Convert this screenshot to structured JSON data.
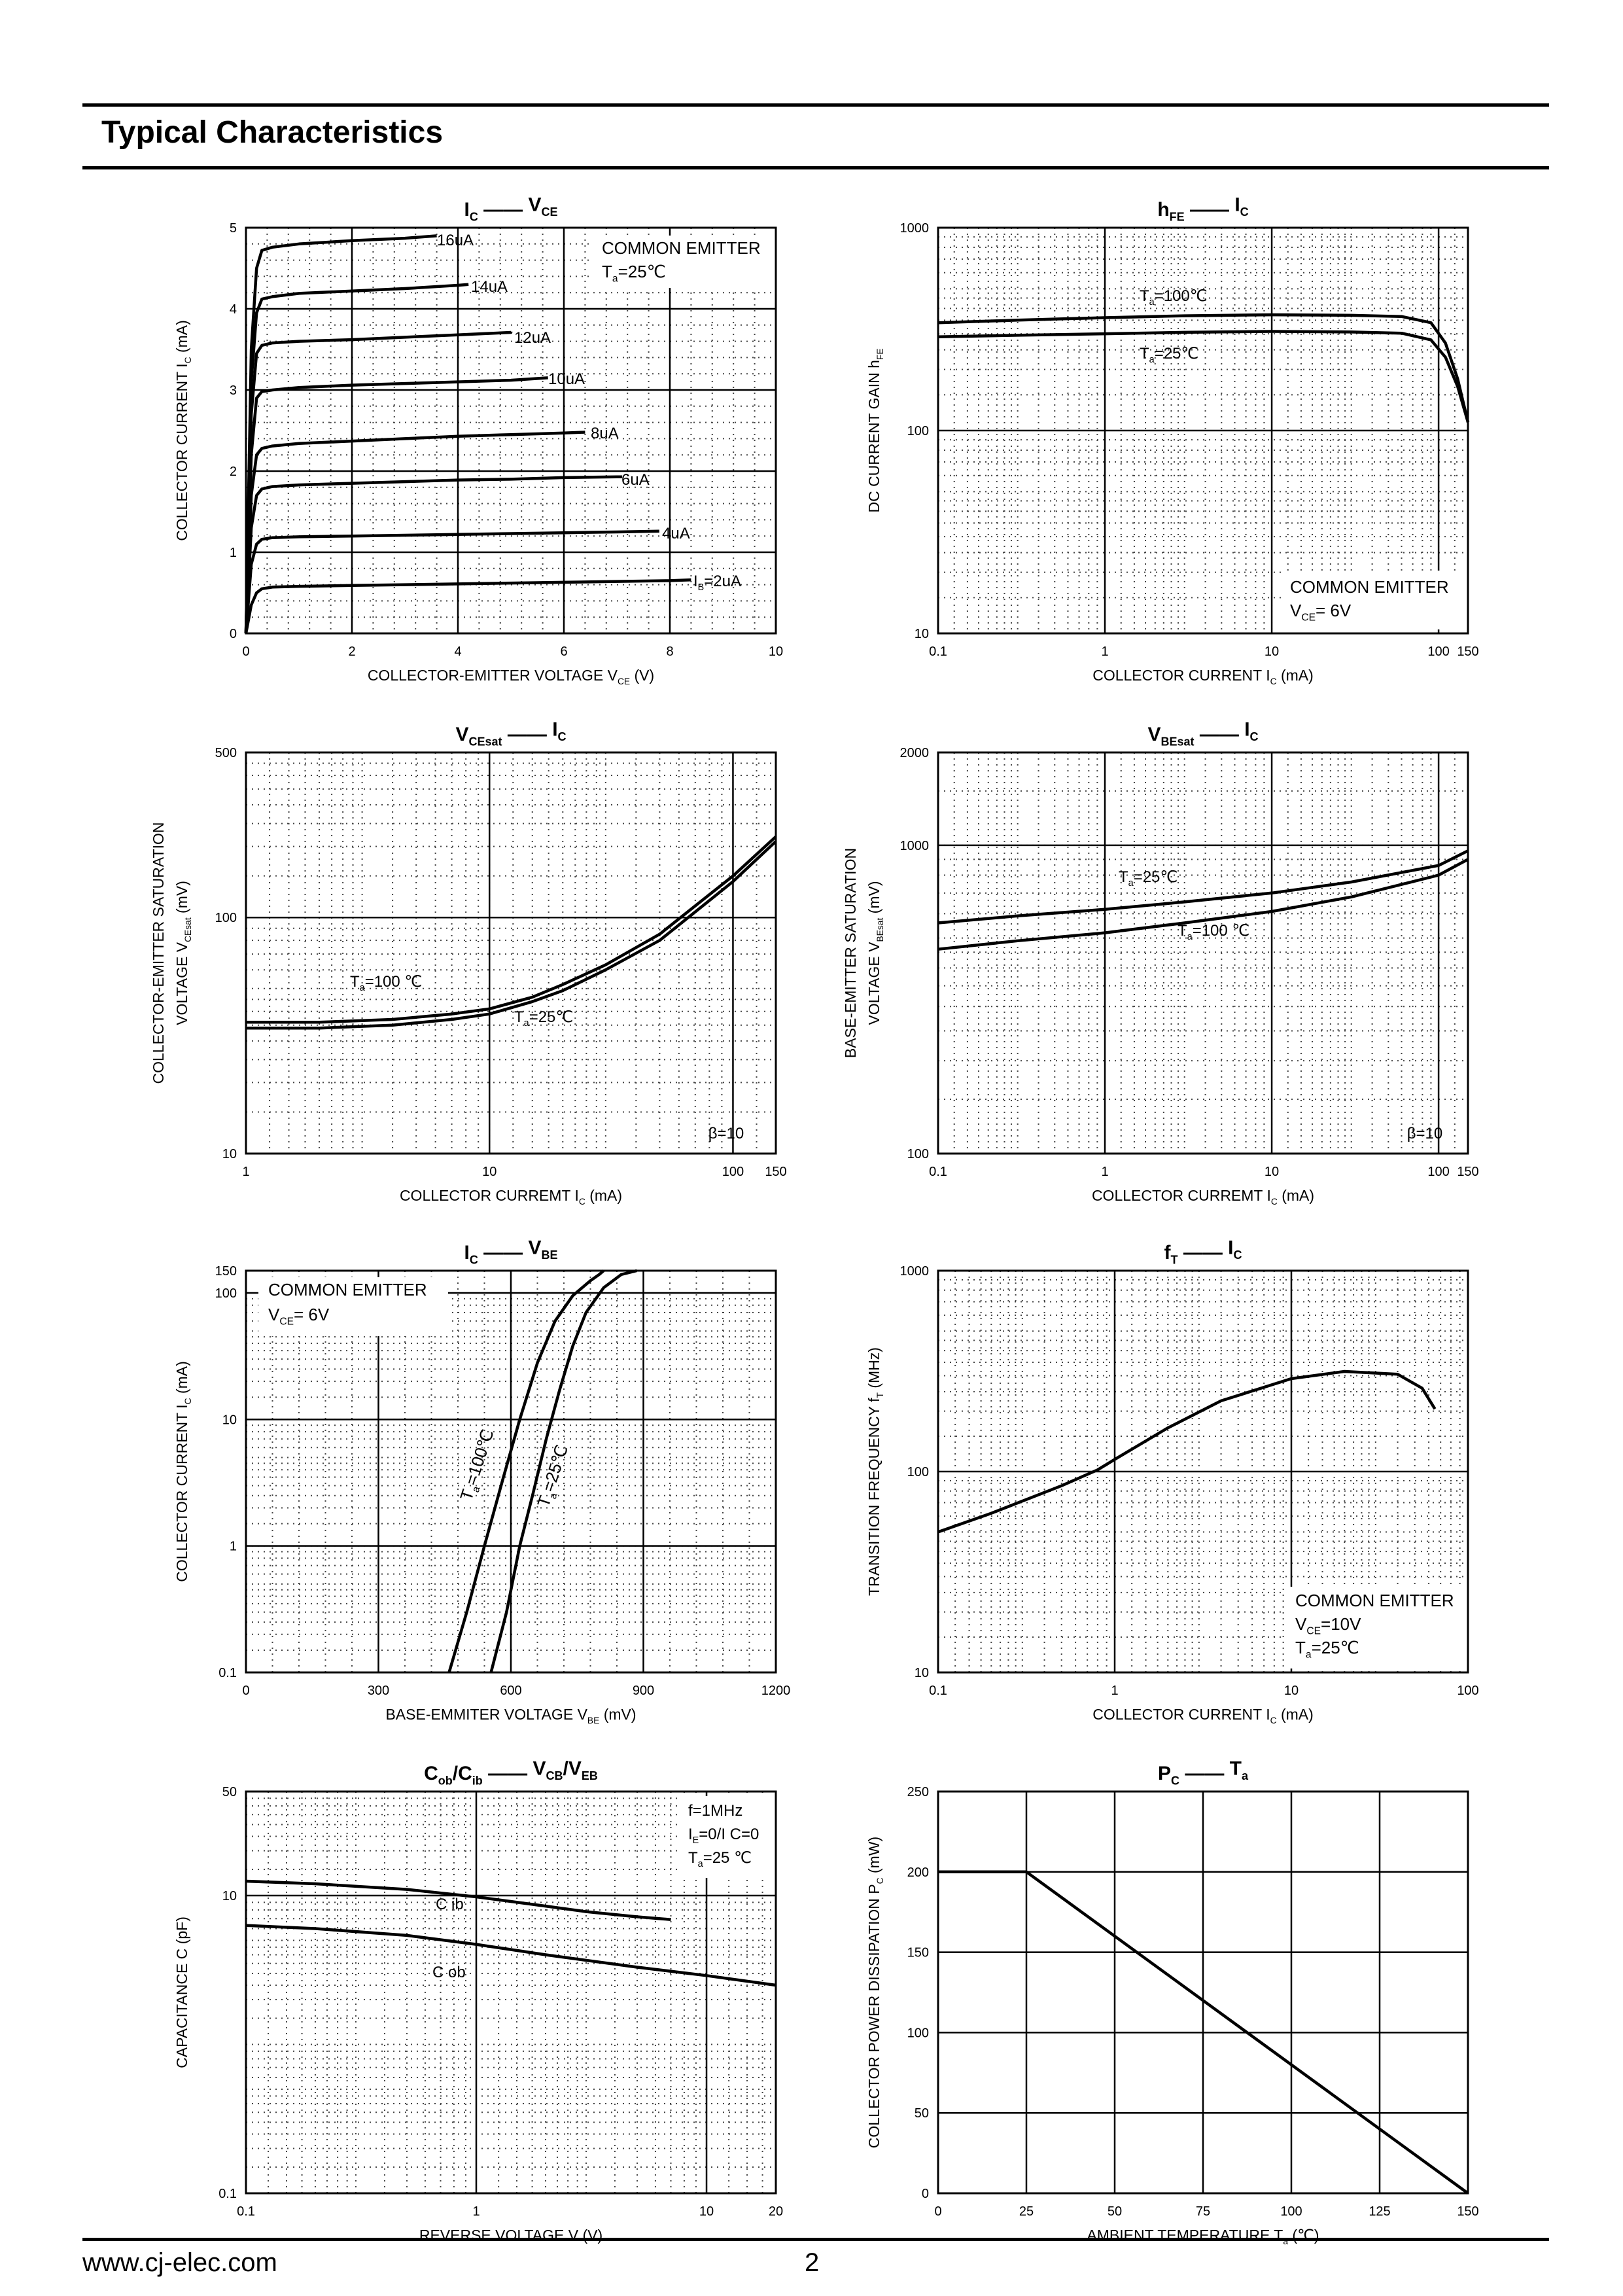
{
  "header": {
    "title": "Typical Characteristics"
  },
  "footer": {
    "website": "www.cj-elec.com",
    "page_number": "2"
  },
  "chart_data": [
    {
      "id": "ic-vce",
      "type": "line",
      "xscale": "linear",
      "yscale": "linear",
      "xlim": [
        0,
        10
      ],
      "ylim": [
        0,
        5
      ],
      "xticks": [
        0,
        2,
        4,
        6,
        8,
        10
      ],
      "xtick_labels": [
        "0",
        "2",
        "4",
        "6",
        "8",
        "10"
      ],
      "yticks": [
        0,
        1,
        2,
        3,
        4,
        5
      ],
      "ytick_labels": [
        "0",
        "1",
        "2",
        "3",
        "4",
        "5"
      ],
      "title_main": "I",
      "title_main_sub": "C",
      "title_dash": "——",
      "title_second": "V",
      "title_second_sub": "CE",
      "xlabel": "COLLECTOR-EMITTER VOLTAGE",
      "xlabel_sym": "V",
      "xlabel_sub": "CE",
      "xlabel_unit": "(V)",
      "ylabel": "COLLECTOR CURRENT",
      "ylabel_sym": "I",
      "ylabel_sub": "C",
      "ylabel_unit": "(mA)",
      "conditions": [
        "COMMON EMITTER",
        "T a=25℃"
      ],
      "series": [
        {
          "name": "16uA",
          "label": "16uA",
          "x": [
            0,
            0.1,
            0.2,
            0.3,
            0.5,
            1,
            2,
            3,
            3.6
          ],
          "y": [
            0,
            3.5,
            4.5,
            4.72,
            4.76,
            4.8,
            4.84,
            4.87,
            4.9
          ]
        },
        {
          "name": "14uA",
          "label": "14uA",
          "x": [
            0,
            0.1,
            0.2,
            0.3,
            0.5,
            1,
            2,
            3,
            4,
            4.2
          ],
          "y": [
            0,
            3.1,
            3.95,
            4.12,
            4.15,
            4.19,
            4.22,
            4.25,
            4.29,
            4.3
          ]
        },
        {
          "name": "12uA",
          "label": "12uA",
          "x": [
            0,
            0.1,
            0.2,
            0.3,
            0.5,
            1,
            2,
            3,
            4,
            5,
            5.0
          ],
          "y": [
            0,
            2.7,
            3.45,
            3.55,
            3.58,
            3.6,
            3.62,
            3.65,
            3.68,
            3.71,
            3.72
          ]
        },
        {
          "name": "10uA",
          "label": "10uA",
          "x": [
            0,
            0.1,
            0.2,
            0.3,
            0.5,
            1,
            2,
            3,
            4,
            5,
            5.7
          ],
          "y": [
            0,
            2.2,
            2.9,
            2.98,
            3.0,
            3.03,
            3.06,
            3.08,
            3.1,
            3.12,
            3.15
          ]
        },
        {
          "name": "8uA",
          "label": "8uA",
          "x": [
            0,
            0.1,
            0.2,
            0.3,
            0.5,
            1,
            2,
            3,
            4,
            5,
            6,
            6.4
          ],
          "y": [
            0,
            1.7,
            2.2,
            2.28,
            2.31,
            2.34,
            2.37,
            2.4,
            2.43,
            2.45,
            2.47,
            2.48
          ]
        },
        {
          "name": "6uA",
          "label": "6uA",
          "x": [
            0,
            0.1,
            0.2,
            0.3,
            0.5,
            1,
            2,
            3,
            4,
            5,
            6,
            7,
            7.1
          ],
          "y": [
            0,
            1.3,
            1.7,
            1.78,
            1.81,
            1.83,
            1.85,
            1.87,
            1.89,
            1.9,
            1.92,
            1.93,
            1.93
          ]
        },
        {
          "name": "4uA",
          "label": "4uA",
          "x": [
            0,
            0.1,
            0.2,
            0.3,
            0.5,
            1,
            2,
            3,
            4,
            5,
            6,
            7,
            7.8
          ],
          "y": [
            0,
            0.85,
            1.1,
            1.16,
            1.18,
            1.19,
            1.2,
            1.21,
            1.22,
            1.23,
            1.24,
            1.25,
            1.26
          ]
        },
        {
          "name": "2uA",
          "label": "I B=2uA",
          "x": [
            0,
            0.1,
            0.2,
            0.3,
            0.5,
            1,
            2,
            3,
            4,
            5,
            6,
            7,
            8,
            8.4
          ],
          "y": [
            0,
            0.35,
            0.5,
            0.55,
            0.57,
            0.58,
            0.59,
            0.6,
            0.61,
            0.62,
            0.63,
            0.64,
            0.65,
            0.66
          ]
        }
      ]
    },
    {
      "id": "hfe-ic",
      "type": "line",
      "xscale": "log",
      "yscale": "log",
      "xlim": [
        0.1,
        150
      ],
      "ylim": [
        10,
        1000
      ],
      "xticks": [
        0.1,
        1,
        10,
        100,
        150
      ],
      "xtick_labels": [
        "0.1",
        "1",
        "10",
        "100",
        "150"
      ],
      "yticks": [
        10,
        100,
        1000
      ],
      "ytick_labels": [
        "10",
        "100",
        "1000"
      ],
      "title_main": "h",
      "title_main_sub": "FE",
      "title_dash": "——",
      "title_second": "I",
      "title_second_sub": "C",
      "xlabel": "COLLECTOR CURRENT",
      "xlabel_sym": "I",
      "xlabel_sub": "C",
      "xlabel_unit": "(mA)",
      "ylabel": "DC CURRENT GAIN",
      "ylabel_sym": "h",
      "ylabel_sub": "FE",
      "ylabel_unit": "",
      "conditions": [
        "COMMON EMITTER",
        "V CE= 6V"
      ],
      "series": [
        {
          "name": "Ta=100℃",
          "label": "T a=100℃",
          "x": [
            0.1,
            0.3,
            1,
            3,
            10,
            30,
            60,
            90,
            110,
            130,
            150
          ],
          "y": [
            340,
            350,
            360,
            368,
            372,
            370,
            365,
            340,
            270,
            180,
            110
          ]
        },
        {
          "name": "Ta=25℃",
          "label": "T a=25℃",
          "x": [
            0.1,
            0.3,
            1,
            3,
            10,
            30,
            60,
            90,
            110,
            130,
            150
          ],
          "y": [
            290,
            295,
            300,
            305,
            308,
            306,
            302,
            280,
            230,
            165,
            110
          ]
        }
      ]
    },
    {
      "id": "vcesat-ic",
      "type": "line",
      "xscale": "log",
      "yscale": "log",
      "xlim": [
        1,
        150
      ],
      "ylim": [
        10,
        500
      ],
      "xticks": [
        1,
        10,
        100,
        150
      ],
      "xtick_labels": [
        "1",
        "10",
        "100",
        "150"
      ],
      "yticks": [
        10,
        100,
        500
      ],
      "ytick_labels": [
        "10",
        "100",
        "500"
      ],
      "title_main": "V",
      "title_main_sub": "CEsat",
      "title_dash": "——",
      "title_second": "I",
      "title_second_sub": "C",
      "xlabel": "COLLECTOR CURREMT",
      "xlabel_sym": "I",
      "xlabel_sub": "C",
      "xlabel_unit": "(mA)",
      "ylabel": "COLLECTOR-EMITTER SATURATION",
      "ylabel2": "VOLTAGE",
      "ylabel_sym": "V",
      "ylabel_sub": "CEsat",
      "ylabel_unit": "(mV)",
      "conditions": [],
      "annotations": [
        "β=10"
      ],
      "series": [
        {
          "name": "Ta=100℃",
          "label": "T a=100 ℃",
          "x": [
            1,
            2,
            4,
            7,
            10,
            15,
            20,
            30,
            50,
            80,
            100,
            150
          ],
          "y": [
            36,
            36,
            37,
            39,
            41,
            46,
            52,
            63,
            85,
            125,
            150,
            220
          ]
        },
        {
          "name": "Ta=25℃",
          "label": "T a=25℃",
          "x": [
            1,
            2,
            4,
            7,
            10,
            15,
            20,
            30,
            50,
            80,
            100,
            150
          ],
          "y": [
            34,
            34,
            35,
            37,
            39,
            44,
            49,
            60,
            80,
            118,
            142,
            210
          ]
        }
      ]
    },
    {
      "id": "vbesat-ic",
      "type": "line",
      "xscale": "log",
      "yscale": "log",
      "xlim": [
        0.1,
        150
      ],
      "ylim": [
        100,
        2000
      ],
      "xticks": [
        0.1,
        1,
        10,
        100,
        150
      ],
      "xtick_labels": [
        "0.1",
        "1",
        "10",
        "100",
        "150"
      ],
      "yticks": [
        100,
        1000,
        2000
      ],
      "ytick_labels": [
        "100",
        "1000",
        "2000"
      ],
      "title_main": "V",
      "title_main_sub": "BEsat",
      "title_dash": "——",
      "title_second": "I",
      "title_second_sub": "C",
      "xlabel": "COLLECTOR CURREMT",
      "xlabel_sym": "I",
      "xlabel_sub": "C",
      "xlabel_unit": "(mA)",
      "ylabel": "BASE-EMITTER SATURATION",
      "ylabel2": "VOLTAGE",
      "ylabel_sym": "V",
      "ylabel_sub": "BEsat",
      "ylabel_unit": "(mV)",
      "conditions": [],
      "annotations": [
        "β=10"
      ],
      "series": [
        {
          "name": "Ta=25℃",
          "label": "T a=25℃",
          "x": [
            0.1,
            0.3,
            1,
            3,
            10,
            30,
            100,
            150
          ],
          "y": [
            560,
            590,
            620,
            655,
            700,
            760,
            860,
            960
          ]
        },
        {
          "name": "Ta=100℃",
          "label": "T a=100 ℃",
          "x": [
            0.1,
            0.3,
            1,
            3,
            10,
            30,
            100,
            150
          ],
          "y": [
            460,
            490,
            520,
            560,
            610,
            680,
            800,
            900
          ]
        }
      ]
    },
    {
      "id": "ic-vbe",
      "type": "line",
      "xscale": "linear",
      "yscale": "log",
      "xlim": [
        0,
        1200
      ],
      "ylim": [
        0.1,
        150
      ],
      "xticks": [
        0,
        300,
        600,
        900,
        1200
      ],
      "xtick_labels": [
        "0",
        "300",
        "600",
        "900",
        "1200"
      ],
      "yticks": [
        0.1,
        1,
        10,
        100,
        150
      ],
      "ytick_labels": [
        "0.1",
        "1",
        "10",
        "100",
        "150"
      ],
      "title_main": "I",
      "title_main_sub": "C",
      "title_dash": "——",
      "title_second": "V",
      "title_second_sub": "BE",
      "xlabel": "BASE-EMMITER VOLTAGE",
      "xlabel_sym": "V",
      "xlabel_sub": "BE",
      "xlabel_unit": "(mV)",
      "ylabel": "COLLECTOR CURRENT",
      "ylabel_sym": "I",
      "ylabel_sub": "C",
      "ylabel_unit": "(mA)",
      "conditions": [
        "COMMON EMITTER",
        "V CE= 6V"
      ],
      "series": [
        {
          "name": "Ta=100℃",
          "label": "T a=100℃",
          "x": [
            460,
            500,
            540,
            580,
            620,
            660,
            700,
            740,
            780,
            800,
            810
          ],
          "y": [
            0.1,
            0.3,
            1.0,
            3.2,
            10,
            28,
            60,
            95,
            125,
            140,
            150
          ]
        },
        {
          "name": "Ta=25℃",
          "label": "T a=25℃",
          "x": [
            555,
            590,
            620,
            650,
            680,
            710,
            740,
            770,
            810,
            850,
            885
          ],
          "y": [
            0.1,
            0.3,
            1.0,
            2.6,
            7.0,
            17,
            38,
            70,
            110,
            140,
            150
          ]
        }
      ]
    },
    {
      "id": "ft-ic",
      "type": "line",
      "xscale": "log",
      "yscale": "log",
      "xlim": [
        0.1,
        100
      ],
      "ylim": [
        10,
        1000
      ],
      "xticks": [
        0.1,
        1,
        10,
        100
      ],
      "xtick_labels": [
        "0.1",
        "1",
        "10",
        "100"
      ],
      "yticks": [
        10,
        100,
        1000
      ],
      "ytick_labels": [
        "10",
        "100",
        "1000"
      ],
      "title_main": "f",
      "title_main_sub": "T",
      "title_dash": "——",
      "title_second": "I",
      "title_second_sub": "C",
      "xlabel": "COLLECTOR CURRENT",
      "xlabel_sym": "I",
      "xlabel_sub": "C",
      "xlabel_unit": "(mA)",
      "ylabel": "TRANSITION FREQUENCY",
      "ylabel_sym": "f",
      "ylabel_sub": "T",
      "ylabel_unit": "(MHz)",
      "conditions": [
        "COMMON EMITTER",
        "V CE=10V",
        "T a=25℃"
      ],
      "series": [
        {
          "name": "fT",
          "label": "",
          "x": [
            0.1,
            0.2,
            0.5,
            0.8,
            1,
            2,
            4,
            10,
            20,
            40,
            55,
            65
          ],
          "y": [
            50,
            62,
            85,
            102,
            115,
            165,
            225,
            290,
            315,
            305,
            260,
            205
          ]
        }
      ]
    },
    {
      "id": "cob-vcb",
      "type": "line",
      "xscale": "log",
      "yscale": "log",
      "xlim": [
        0.1,
        20
      ],
      "ylim": [
        0.1,
        50
      ],
      "xticks": [
        0.1,
        1,
        10,
        20
      ],
      "xtick_labels": [
        "0.1",
        "1",
        "10",
        "20"
      ],
      "yticks": [
        0.1,
        10,
        50
      ],
      "ytick_labels": [
        "0.1",
        "10",
        "50"
      ],
      "title_main": "C",
      "title_main_sub": "ob",
      "title_mid": "/C",
      "title_mid_sub": "ib",
      "title_dash": "——",
      "title_second": "V",
      "title_second_sub": "CB",
      "title_tail": "/V",
      "title_tail_sub": "EB",
      "xlabel": "REVERSE  VOLTAGE",
      "xlabel_sym": "V",
      "xlabel_sub": "",
      "xlabel_unit": "(V)",
      "ylabel": "CAPACITANCE",
      "ylabel_sym": "C",
      "ylabel_sub": "",
      "ylabel_unit": "(pF)",
      "conditions": [
        "f=1MHz",
        "I E=0/I C=0",
        "T a=25 ℃"
      ],
      "series": [
        {
          "name": "Cib",
          "label": "C ib",
          "x": [
            0.1,
            0.2,
            0.5,
            1,
            2,
            3,
            5,
            7
          ],
          "y": [
            12.5,
            12.0,
            11.0,
            9.8,
            8.5,
            7.8,
            7.2,
            6.9
          ]
        },
        {
          "name": "Cob",
          "label": "C ob",
          "x": [
            0.1,
            0.2,
            0.5,
            1,
            2,
            5,
            10,
            20
          ],
          "y": [
            6.3,
            6.0,
            5.4,
            4.7,
            4.0,
            3.3,
            2.9,
            2.5
          ]
        }
      ]
    },
    {
      "id": "pc-ta",
      "type": "line",
      "xscale": "linear",
      "yscale": "linear",
      "xlim": [
        0,
        150
      ],
      "ylim": [
        0,
        250
      ],
      "xticks": [
        0,
        25,
        50,
        75,
        100,
        125,
        150
      ],
      "xtick_labels": [
        "0",
        "25",
        "50",
        "75",
        "100",
        "125",
        "150"
      ],
      "yticks": [
        0,
        50,
        100,
        150,
        200,
        250
      ],
      "ytick_labels": [
        "0",
        "50",
        "100",
        "150",
        "200",
        "250"
      ],
      "title_main": "P",
      "title_main_sub": "C",
      "title_dash": "——",
      "title_second": "T",
      "title_second_sub": "a",
      "xlabel": "AMBIENT TEMPERATURE",
      "xlabel_sym": "T",
      "xlabel_sub": "a",
      "xlabel_unit": "(℃)",
      "ylabel": "COLLECTOR POWER DISSIPATION",
      "ylabel_sym": "P",
      "ylabel_sub": "C",
      "ylabel_unit": "(mW)",
      "conditions": [],
      "series": [
        {
          "name": "Pc",
          "label": "",
          "x": [
            0,
            25,
            150
          ],
          "y": [
            200,
            200,
            0
          ]
        }
      ]
    }
  ]
}
